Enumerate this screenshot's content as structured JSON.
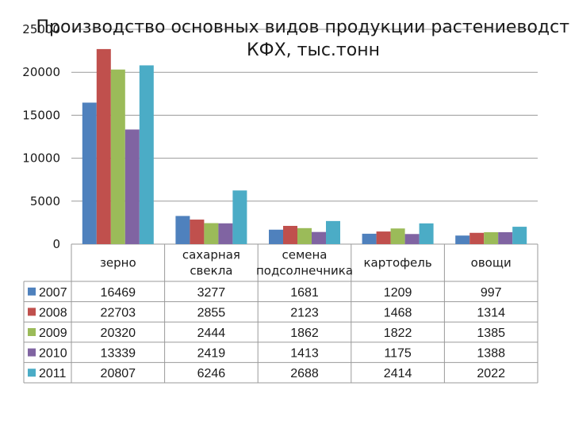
{
  "chart_data": {
    "type": "bar",
    "title": "Производство основных видов продукции растениеводства КФХ, тыс.тонн",
    "title_lines": [
      "Производство основных видов продукции растениеводства",
      "КФХ, тыс.тонн"
    ],
    "categories": [
      "зерно",
      "сахарная свекла",
      "семена подсолнечника",
      "картофель",
      "овощи"
    ],
    "category_lines": [
      [
        "зерно"
      ],
      [
        "сахарная",
        "свекла"
      ],
      [
        "семена",
        "подсолнечника"
      ],
      [
        "картофель"
      ],
      [
        "овощи"
      ]
    ],
    "y_ticks": [
      "0",
      "5000",
      "10000",
      "15000",
      "20000",
      "25000"
    ],
    "ylim": [
      0,
      25000
    ],
    "grid": true,
    "legend": "data-table-rows",
    "series": [
      {
        "name": "2007",
        "color": "#4f81bd",
        "values": [
          16469,
          3277,
          1681,
          1209,
          997
        ]
      },
      {
        "name": "2008",
        "color": "#c0504d",
        "values": [
          22703,
          2855,
          2123,
          1468,
          1314
        ]
      },
      {
        "name": "2009",
        "color": "#9bbb59",
        "values": [
          20320,
          2444,
          1862,
          1822,
          1385
        ]
      },
      {
        "name": "2010",
        "color": "#8064a2",
        "values": [
          13339,
          2419,
          1413,
          1175,
          1388
        ]
      },
      {
        "name": "2011",
        "color": "#4bacc6",
        "values": [
          20807,
          6246,
          2688,
          2414,
          2022
        ]
      }
    ]
  }
}
